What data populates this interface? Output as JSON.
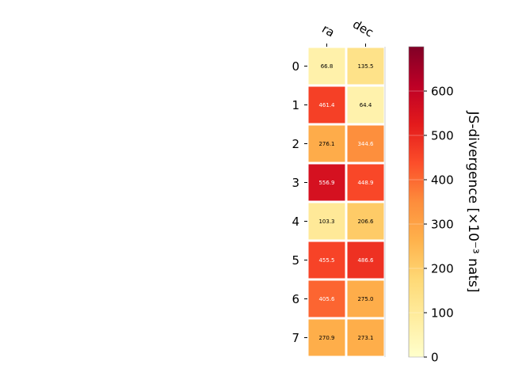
{
  "chart_data": {
    "type": "heatmap",
    "columns": [
      "ra",
      "dec"
    ],
    "rows": [
      "0",
      "1",
      "2",
      "3",
      "4",
      "5",
      "6",
      "7"
    ],
    "values": [
      [
        66.8,
        135.5
      ],
      [
        461.4,
        64.4
      ],
      [
        276.1,
        344.6
      ],
      [
        556.9,
        448.9
      ],
      [
        103.3,
        206.6
      ],
      [
        455.5,
        486.6
      ],
      [
        405.6,
        275.0
      ],
      [
        270.9,
        273.1
      ]
    ],
    "value_labels": [
      [
        "66.8",
        "135.5"
      ],
      [
        "461.4",
        "64.4"
      ],
      [
        "276.1",
        "344.6"
      ],
      [
        "556.9",
        "448.9"
      ],
      [
        "103.3",
        "206.6"
      ],
      [
        "455.5",
        "486.6"
      ],
      [
        "405.6",
        "275.0"
      ],
      [
        "270.9",
        "273.1"
      ]
    ],
    "colorbar": {
      "label": "JS-divergence [×10⁻³ nats]",
      "range": [
        0,
        700
      ],
      "ticks": [
        0,
        100,
        200,
        300,
        400,
        500,
        600
      ],
      "colormap": "YlOrRd"
    }
  }
}
